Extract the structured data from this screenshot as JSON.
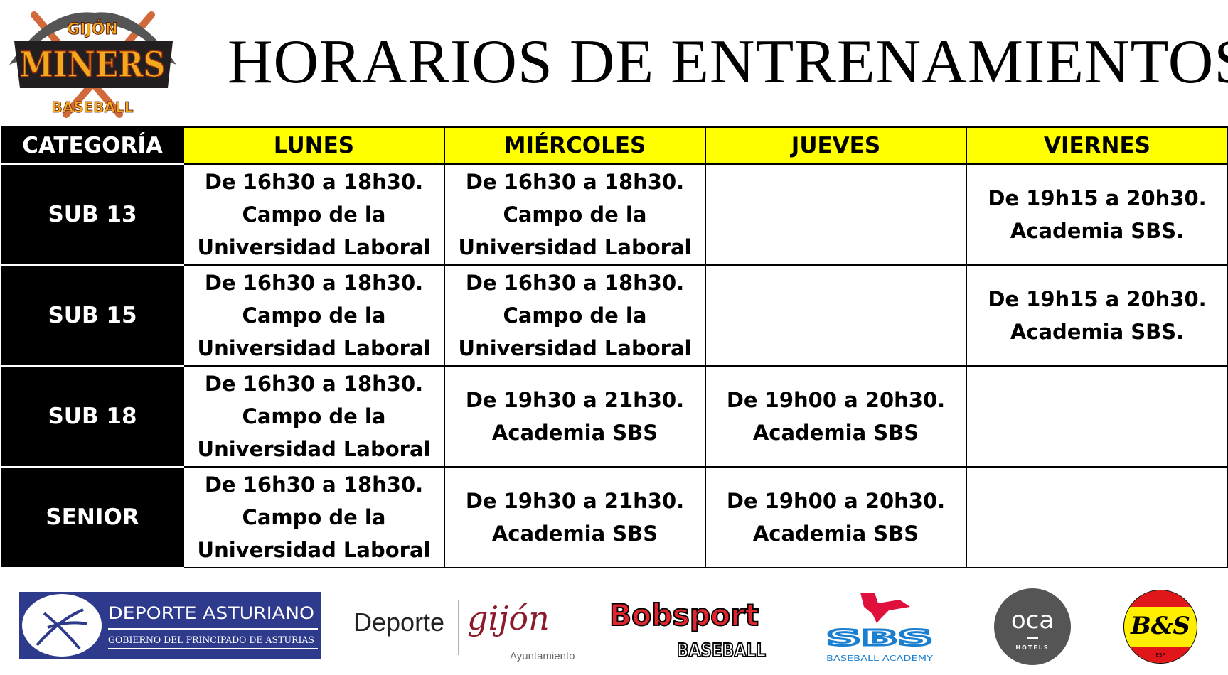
{
  "logo": {
    "top_text": "GIJÓN",
    "main_text": "MINERS",
    "bottom_text": "BASEBALL"
  },
  "title": "HORARIOS DE ENTRENAMIENTOS",
  "table": {
    "headers": [
      "CATEGORÍA",
      "LUNES",
      "MIÉRCOLES",
      "JUEVES",
      "VIERNES"
    ],
    "rows": [
      {
        "category": "SUB 13",
        "lunes": [
          "De 16h30 a 18h30.",
          "Campo de la",
          "Universidad Laboral"
        ],
        "miercoles": [
          "De 16h30 a 18h30.",
          "Campo de la",
          "Universidad Laboral"
        ],
        "jueves": [],
        "viernes": [
          "De 19h15 a 20h30.",
          "Academia SBS."
        ]
      },
      {
        "category": "SUB 15",
        "lunes": [
          "De 16h30 a 18h30.",
          "Campo de la",
          "Universidad Laboral"
        ],
        "miercoles": [
          "De 16h30 a 18h30.",
          "Campo de la",
          "Universidad Laboral"
        ],
        "jueves": [],
        "viernes": [
          "De 19h15 a 20h30.",
          "Academia SBS."
        ]
      },
      {
        "category": "SUB 18",
        "lunes": [
          "De 16h30 a 18h30.",
          "Campo de la",
          "Universidad Laboral"
        ],
        "miercoles": [
          "De 19h30 a 21h30.",
          "Academia SBS"
        ],
        "jueves": [
          "De 19h00 a 20h30.",
          "Academia SBS"
        ],
        "viernes": []
      },
      {
        "category": "SENIOR",
        "lunes": [
          "De 16h30 a 18h30.",
          "Campo de la",
          "Universidad Laboral"
        ],
        "miercoles": [
          "De 19h30 a 21h30.",
          "Academia SBS"
        ],
        "jueves": [
          "De 19h00 a 20h30.",
          "Academia SBS"
        ],
        "viernes": []
      }
    ]
  },
  "sponsors": {
    "deporte_asturiano": {
      "line1": "DEPORTE ASTURIANO",
      "line2": "GOBIERNO DEL PRINCIPADO DE ASTURIAS"
    },
    "gijon": {
      "left": "Deporte",
      "brand": "gijón",
      "sub": "Ayuntamiento"
    },
    "bobsport": {
      "line1": "Bobsport",
      "line2": "BASEBALL"
    },
    "sbs": {
      "brand": "SBS",
      "sub": "BASEBALL ACADEMY"
    },
    "oca": {
      "brand": "oca",
      "sub": "HOTELS"
    },
    "bs": {
      "brand": "B&S",
      "sub": "ESP"
    }
  },
  "colors": {
    "header_yellow": "#ffff00",
    "category_black": "#000000",
    "asturias_blue": "#2e3a8c",
    "gijon_red": "#8b1a2b",
    "bobsport_red": "#e0262c",
    "sbs_blue": "#1a7fd0",
    "oca_gray": "#555555"
  }
}
